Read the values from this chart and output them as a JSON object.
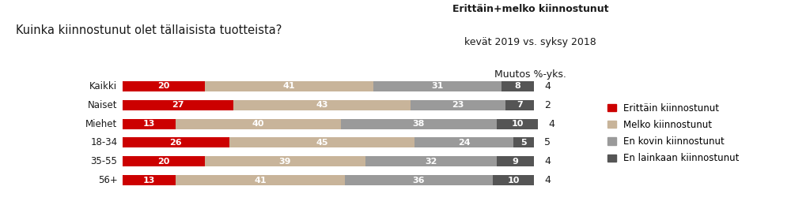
{
  "title": "Kuinka kiinnostunut olet tällaisista tuotteista?",
  "header_line1": "Erittäin+melko kiinnostunut",
  "header_line2": "kevät 2019 vs. syksy 2018",
  "header_line3": "Muutos %-yks.",
  "categories": [
    "Kaikki",
    "Naiset",
    "Miehet",
    "18-34",
    "35-55",
    "56+"
  ],
  "data": {
    "erittain": [
      20,
      27,
      13,
      26,
      20,
      13
    ],
    "melko": [
      41,
      43,
      40,
      45,
      39,
      41
    ],
    "ei_kovin": [
      31,
      23,
      38,
      24,
      32,
      36
    ],
    "ei_lainkaan": [
      8,
      7,
      10,
      5,
      9,
      10
    ]
  },
  "muutos": [
    4,
    2,
    4,
    5,
    4,
    4
  ],
  "colors": {
    "erittain": "#cc0000",
    "melko": "#c8b49a",
    "ei_kovin": "#9a9a9a",
    "ei_lainkaan": "#555555"
  },
  "legend_labels": [
    "Erittäin kiinnostunut",
    "Melko kiinnostunut",
    "En kovin kiinnostunut",
    "En lainkaan kiinnostunut"
  ],
  "bar_height": 0.55,
  "background_color": "#ffffff",
  "text_color": "#1a1a1a",
  "value_fontsize": 8.0,
  "label_fontsize": 8.5,
  "title_fontsize": 10.5,
  "header_fontsize": 9.0,
  "muutos_fontsize": 9.0,
  "legend_fontsize": 8.5
}
